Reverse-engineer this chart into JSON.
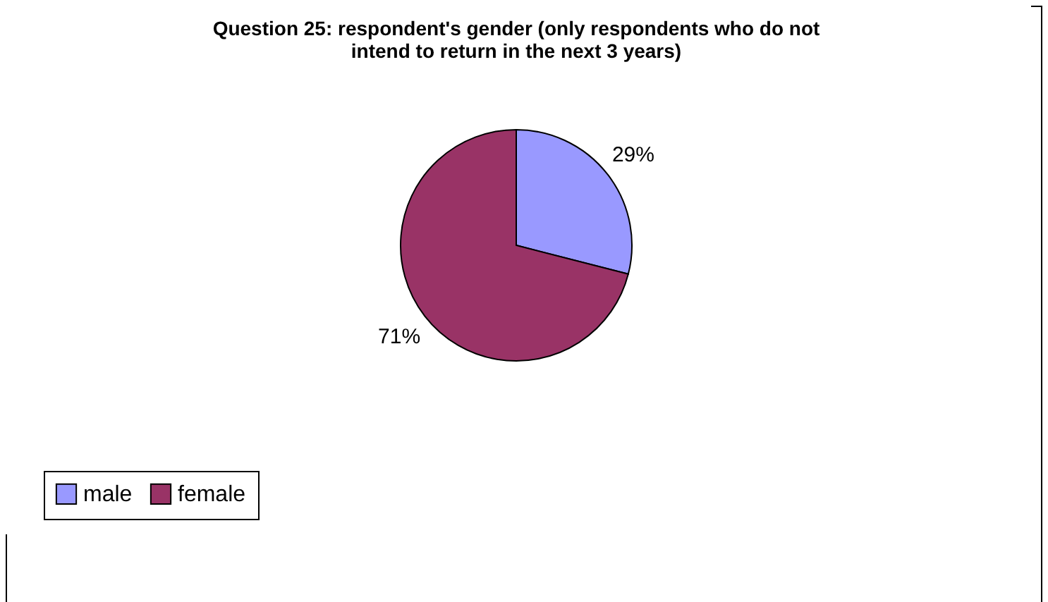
{
  "chart_data": {
    "type": "pie",
    "title": "Question 25: respondent's gender (only respondents who do not intend to return in the next 3 years)",
    "categories": [
      "male",
      "female"
    ],
    "values": [
      29,
      71
    ],
    "colors": [
      "#9999ff",
      "#993366"
    ],
    "value_labels": [
      "29%",
      "71%"
    ],
    "legend": "bottom"
  }
}
